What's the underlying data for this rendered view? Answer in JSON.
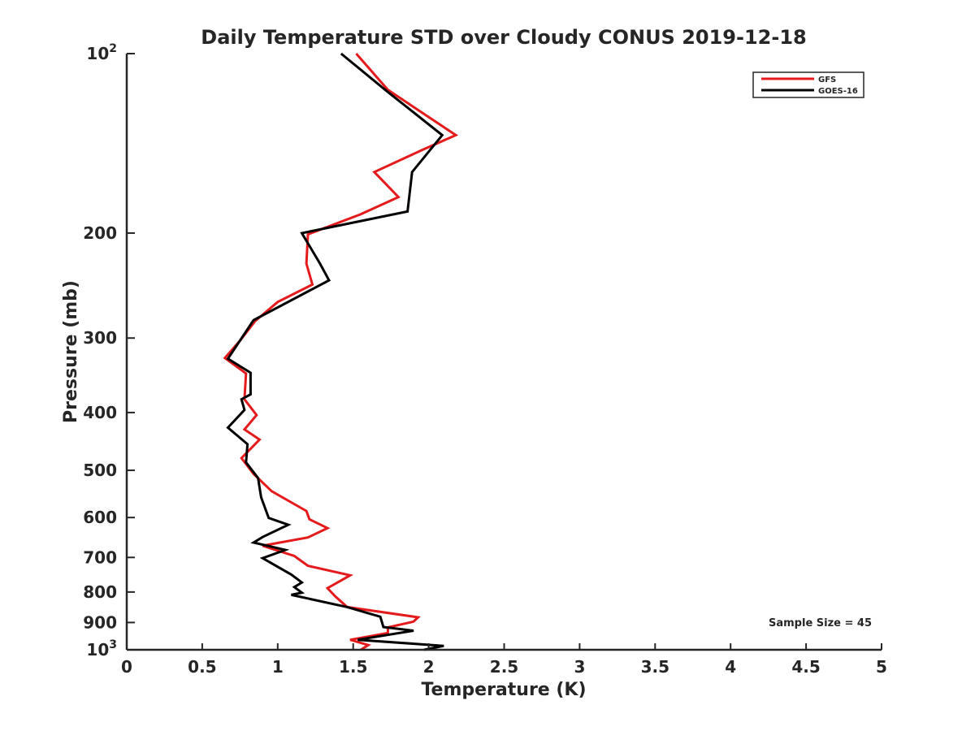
{
  "chart_data": {
    "type": "line",
    "title": "Daily Temperature STD over Cloudy CONUS 2019-12-18",
    "xlabel": "Temperature (K)",
    "ylabel": "Pressure (mb)",
    "xlim": [
      0,
      5
    ],
    "ylim": [
      100,
      1000
    ],
    "y_scale": "log",
    "y_reversed": true,
    "grid": false,
    "legend_position": "top-right",
    "annotation": "Sample Size = 45",
    "x_ticks": [
      "0",
      "0.5",
      "1",
      "1.5",
      "2",
      "2.5",
      "3",
      "3.5",
      "4",
      "4.5",
      "5"
    ],
    "y_ticks": [
      {
        "label": "100",
        "base": "10",
        "exp": "2"
      },
      {
        "label": "200"
      },
      {
        "label": "300"
      },
      {
        "label": "400"
      },
      {
        "label": "500"
      },
      {
        "label": "600"
      },
      {
        "label": "700"
      },
      {
        "label": "800"
      },
      {
        "label": "900"
      },
      {
        "label": "1000",
        "base": "10",
        "exp": "3"
      }
    ],
    "series": [
      {
        "name": "GFS",
        "color": "#e41a1c",
        "points": [
          [
            1.52,
            100
          ],
          [
            1.73,
            115
          ],
          [
            2.18,
            137
          ],
          [
            1.96,
            145
          ],
          [
            1.64,
            158
          ],
          [
            1.8,
            174
          ],
          [
            1.55,
            186
          ],
          [
            1.2,
            201
          ],
          [
            1.19,
            225
          ],
          [
            1.23,
            244
          ],
          [
            1.0,
            261
          ],
          [
            0.85,
            281
          ],
          [
            0.75,
            303
          ],
          [
            0.65,
            324
          ],
          [
            0.79,
            344
          ],
          [
            0.78,
            380
          ],
          [
            0.86,
            404
          ],
          [
            0.78,
            427
          ],
          [
            0.88,
            444
          ],
          [
            0.76,
            477
          ],
          [
            0.84,
            507
          ],
          [
            0.96,
            542
          ],
          [
            1.19,
            585
          ],
          [
            1.21,
            604
          ],
          [
            1.33,
            625
          ],
          [
            1.2,
            648
          ],
          [
            0.9,
            669
          ],
          [
            1.11,
            696
          ],
          [
            1.2,
            723
          ],
          [
            1.48,
            750
          ],
          [
            1.33,
            788
          ],
          [
            1.38,
            813
          ],
          [
            1.46,
            848
          ],
          [
            1.93,
            882
          ],
          [
            1.9,
            897
          ],
          [
            1.73,
            917
          ],
          [
            1.73,
            937
          ],
          [
            1.48,
            962
          ],
          [
            1.6,
            982
          ],
          [
            1.55,
            1000
          ]
        ]
      },
      {
        "name": "GOES-16",
        "color": "#000000",
        "points": [
          [
            1.42,
            100
          ],
          [
            1.73,
            116
          ],
          [
            2.09,
            137
          ],
          [
            1.89,
            158
          ],
          [
            1.86,
            184
          ],
          [
            1.16,
            200
          ],
          [
            1.28,
            225
          ],
          [
            1.34,
            240
          ],
          [
            0.84,
            280
          ],
          [
            0.67,
            325
          ],
          [
            0.82,
            343
          ],
          [
            0.82,
            373
          ],
          [
            0.76,
            380
          ],
          [
            0.78,
            396
          ],
          [
            0.67,
            424
          ],
          [
            0.8,
            452
          ],
          [
            0.79,
            485
          ],
          [
            0.87,
            515
          ],
          [
            0.89,
            555
          ],
          [
            0.94,
            601
          ],
          [
            1.07,
            617
          ],
          [
            0.9,
            647
          ],
          [
            0.84,
            661
          ],
          [
            1.05,
            680
          ],
          [
            0.9,
            702
          ],
          [
            1.09,
            748
          ],
          [
            1.16,
            771
          ],
          [
            1.11,
            785
          ],
          [
            1.16,
            802
          ],
          [
            1.09,
            809
          ],
          [
            1.46,
            848
          ],
          [
            1.68,
            880
          ],
          [
            1.7,
            916
          ],
          [
            1.9,
            929
          ],
          [
            1.53,
            962
          ],
          [
            2.1,
            985
          ],
          [
            1.97,
            1000
          ]
        ]
      }
    ]
  }
}
